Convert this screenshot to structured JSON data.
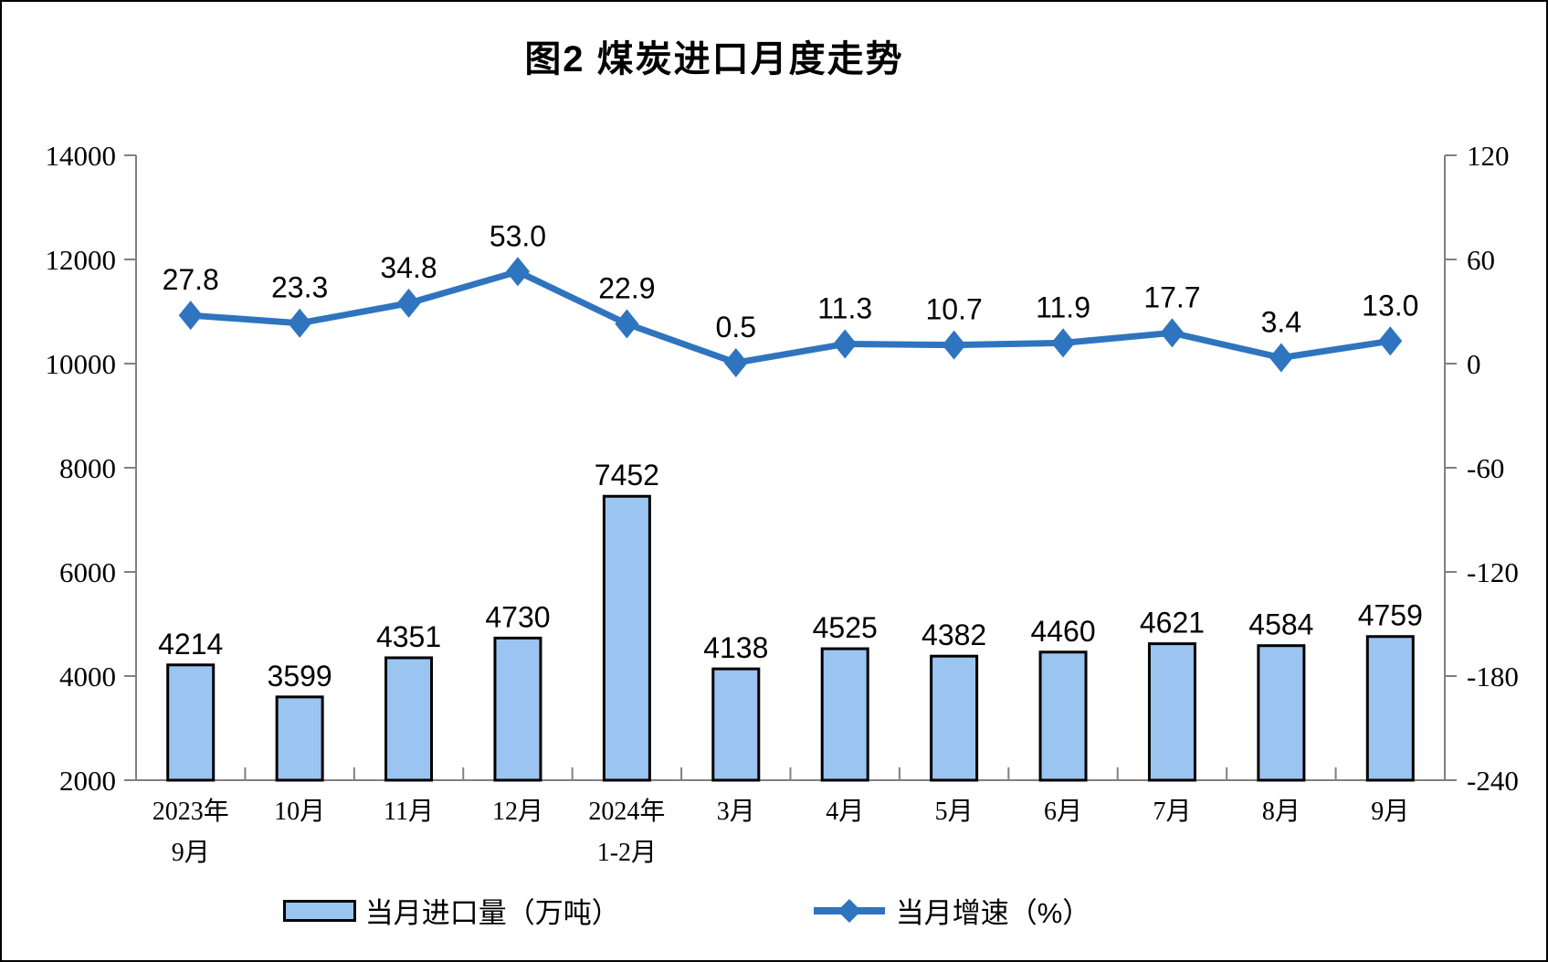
{
  "title": "图2 煤炭进口月度走势",
  "legend": {
    "bar_label": "当月进口量（万吨）",
    "line_label": "当月增速（%）"
  },
  "colors": {
    "bar_fill": "#9CC4F0",
    "bar_stroke": "#000000",
    "line": "#2F74BE",
    "axis": "#808080",
    "text": "#000000"
  },
  "chart_data": {
    "type": [
      "bar",
      "line"
    ],
    "title": "图2 煤炭进口月度走势",
    "xlabel": "",
    "ylabel_left": "",
    "ylabel_right": "",
    "grid": false,
    "legend_position": "bottom",
    "categories": [
      [
        "2023年",
        "9月"
      ],
      [
        "10月"
      ],
      [
        "11月"
      ],
      [
        "12月"
      ],
      [
        "2024年",
        "1-2月"
      ],
      [
        "3月"
      ],
      [
        "4月"
      ],
      [
        "5月"
      ],
      [
        "6月"
      ],
      [
        "7月"
      ],
      [
        "8月"
      ],
      [
        "9月"
      ]
    ],
    "series": [
      {
        "name": "当月进口量（万吨）",
        "type": "bar",
        "axis": "left",
        "values": [
          4214,
          3599,
          4351,
          4730,
          7452,
          4138,
          4525,
          4382,
          4460,
          4621,
          4584,
          4759
        ],
        "labels": [
          "4214",
          "3599",
          "4351",
          "4730",
          "7452",
          "4138",
          "4525",
          "4382",
          "4460",
          "4621",
          "4584",
          "4759"
        ]
      },
      {
        "name": "当月增速（%）",
        "type": "line",
        "axis": "right",
        "values": [
          27.8,
          23.3,
          34.8,
          53.0,
          22.9,
          0.5,
          11.3,
          10.7,
          11.9,
          17.7,
          3.4,
          13.0
        ],
        "labels": [
          "27.8",
          "23.3",
          "34.8",
          "53.0",
          "22.9",
          "0.5",
          "11.3",
          "10.7",
          "11.9",
          "17.7",
          "3.4",
          "13.0"
        ]
      }
    ],
    "left_axis": {
      "min": 2000,
      "max": 14000,
      "step": 2000,
      "ticks": [
        2000,
        4000,
        6000,
        8000,
        10000,
        12000,
        14000
      ]
    },
    "right_axis": {
      "min": -240,
      "max": 120,
      "step": 60,
      "ticks": [
        -240,
        -180,
        -120,
        -60,
        0,
        60,
        120
      ]
    }
  }
}
